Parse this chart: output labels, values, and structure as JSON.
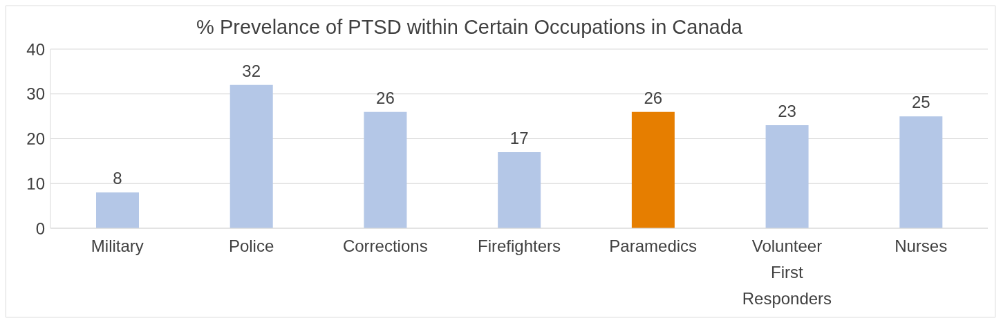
{
  "chart_data": {
    "type": "bar",
    "title": "% Prevelance of PTSD within Certain Occupations in Canada",
    "categories": [
      "Military",
      "Police",
      "Corrections",
      "Firefighters",
      "Paramedics",
      "Volunteer First Responders",
      "Nurses"
    ],
    "values": [
      8,
      32,
      26,
      17,
      26,
      23,
      25
    ],
    "colors": [
      "#b4c7e7",
      "#b4c7e7",
      "#b4c7e7",
      "#b4c7e7",
      "#e67e00",
      "#b4c7e7",
      "#b4c7e7"
    ],
    "ylim": [
      0,
      40
    ],
    "yticks": [
      0,
      10,
      20,
      30,
      40
    ],
    "grid": "y",
    "data_labels": true
  }
}
